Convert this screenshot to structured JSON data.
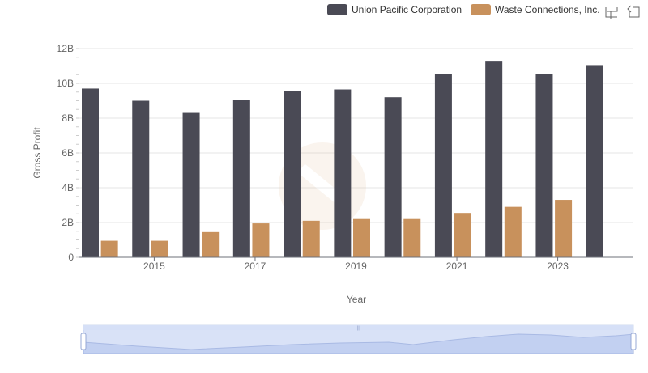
{
  "toolbox": {
    "zoom_icon": "data-zoom-icon",
    "restore_icon": "restore-icon"
  },
  "chart_data": {
    "type": "bar",
    "xlabel": "Year",
    "ylabel": "Gross Profit",
    "x_tick_labels": [
      "2015",
      "2017",
      "2019",
      "2021",
      "2023"
    ],
    "y_tick_labels": [
      "0",
      "2B",
      "4B",
      "6B",
      "8B",
      "10B",
      "12B"
    ],
    "ylim": [
      0,
      12000000000
    ],
    "grid": true,
    "legend_position": "top-right",
    "categories": [
      "2014",
      "2015",
      "2016",
      "2017",
      "2018",
      "2019",
      "2020",
      "2021",
      "2022",
      "2023",
      "2024"
    ],
    "series": [
      {
        "name": "Union Pacific Corporation",
        "color": "#4a4a55",
        "values": [
          9700000000,
          9000000000,
          8300000000,
          9050000000,
          9550000000,
          9650000000,
          9200000000,
          10550000000,
          11250000000,
          10550000000,
          11050000000
        ]
      },
      {
        "name": "Waste Connections, Inc.",
        "color": "#c8915c",
        "values": [
          950000000,
          950000000,
          1450000000,
          1950000000,
          2100000000,
          2200000000,
          2200000000,
          2550000000,
          2900000000,
          3300000000,
          null
        ]
      }
    ]
  }
}
